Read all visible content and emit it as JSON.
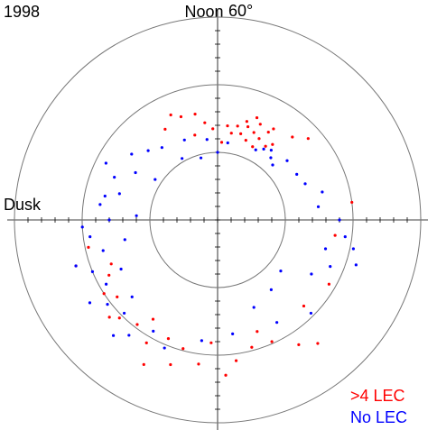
{
  "chart_data": {
    "type": "polar-scatter",
    "title": "1998",
    "top_label": "Noon",
    "left_label": "Dusk",
    "rlim": [
      90,
      60
    ],
    "rticks": [
      {
        "value": 60,
        "label": "60°"
      },
      {
        "value": 70,
        "label": null
      },
      {
        "value": 80,
        "label": null
      }
    ],
    "legend": "lower right",
    "series": [
      {
        "name": ">4 LEC",
        "color": "#ff0000",
        "x": [
          10.2,
          10.5,
          10.8,
          11.0,
          9.8,
          10.0,
          10.4,
          10.7,
          11.2,
          9.6,
          10.9,
          11.4,
          10.3,
          10.6,
          9.9,
          11.6,
          12.2,
          12.8,
          13.3,
          13.6,
          12.5,
          13.0,
          11.8,
          14.0,
          9.2,
          8.8,
          20.5,
          21.0,
          21.5,
          20.8,
          22.0,
          22.5,
          23.0,
          23.5,
          22.8,
          21.8,
          20.2,
          19.8,
          0.5,
          1.0,
          1.6,
          2.2,
          0.2,
          23.8,
          1.3,
          19.5,
          18.8,
          19.2,
          3.0,
          4.0,
          5.5,
          6.5,
          2.6,
          22.2
        ],
        "values": [
          76.5,
          76,
          75.5,
          76.8,
          77,
          75,
          74.5,
          77.5,
          75.8,
          76.2,
          74.8,
          77,
          78,
          73.8,
          74.2,
          76,
          76.5,
          74,
          73.8,
          73,
          75.5,
          77,
          78.5,
          74.5,
          73.5,
          72,
          71.3,
          69.5,
          70.5,
          68.5,
          69,
          71,
          70.3,
          68.5,
          67.5,
          72.5,
          70,
          72,
          69,
          70.5,
          70.3,
          68,
          67,
          71.8,
          72.5,
          73,
          70.5,
          68,
          72,
          71,
          72.5,
          70,
          66.5,
          66
        ]
      },
      {
        "name": "No LEC",
        "color": "#0000ff",
        "x": [
          9.3,
          9.5,
          9.0,
          9.8,
          10.1,
          8.7,
          11.5,
          12.5,
          13.5,
          14.5,
          15.0,
          15.5,
          16.0,
          16.5,
          17.0,
          17.5,
          18.0,
          18.5,
          19.0,
          19.5,
          20.0,
          20.5,
          21.0,
          21.5,
          22.0,
          16.2,
          17.2,
          18.2,
          19.2,
          20.2,
          21.2,
          22.5,
          23.5,
          0.5,
          1.5,
          2.5,
          3.4,
          4.0,
          4.5,
          5.0,
          5.5,
          6.0,
          6.5,
          7.0,
          7.5,
          8.0,
          3.0,
          2.0,
          5.2,
          4.8,
          18.8,
          19.8,
          20.8,
          17.8,
          15.8,
          14.0,
          13.0,
          12.0
        ],
        "values": [
          77.9,
          77,
          78.5,
          77.5,
          78.2,
          76.5,
          78.5,
          78,
          77.2,
          76.5,
          75.5,
          74,
          76,
          73.5,
          75,
          72.5,
          74,
          71,
          72.5,
          70,
          71,
          69.5,
          70.5,
          68.5,
          71,
          71.5,
          73,
          70,
          68,
          67.5,
          67,
          69.5,
          72,
          73,
          76,
          77,
          78,
          74,
          72,
          73.5,
          71,
          72,
          75,
          74,
          76,
          76.5,
          70.5,
          72.5,
          69.5,
          68.5,
          76,
          74,
          73,
          78,
          79,
          79.5,
          80.5,
          80
        ]
      }
    ]
  }
}
